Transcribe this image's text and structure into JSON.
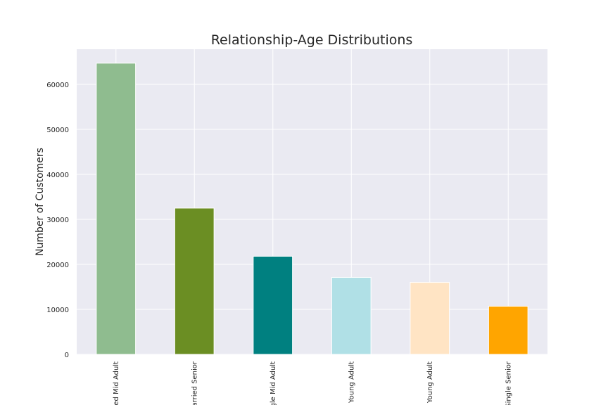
{
  "chart_data": {
    "type": "bar",
    "title": "Relationship-Age Distributions",
    "xlabel": "",
    "ylabel": "Number of Customers",
    "categories": [
      "Married Mid Adult",
      "Married Senior",
      "Single Mid Adult",
      "Young Adult",
      "Young Adult",
      "Single Senior"
    ],
    "category_labels_visible": [
      "ed Mid Adult",
      "arried Senior",
      "gle Mid Adult",
      "Young Adult",
      "Young Adult",
      "Single Senior"
    ],
    "values": [
      64700,
      32500,
      21800,
      17100,
      16000,
      10700
    ],
    "colors": [
      "#8fbc8f",
      "#6b8e23",
      "#008080",
      "#b0e0e6",
      "#ffe4c4",
      "#ffa500"
    ],
    "ylim": [
      0,
      67800
    ],
    "yticks": [
      0,
      10000,
      20000,
      30000,
      40000,
      50000,
      60000
    ],
    "ytick_labels": [
      "0",
      "10000",
      "20000",
      "30000",
      "40000",
      "50000",
      "60000"
    ],
    "grid": true,
    "legend": "none"
  }
}
